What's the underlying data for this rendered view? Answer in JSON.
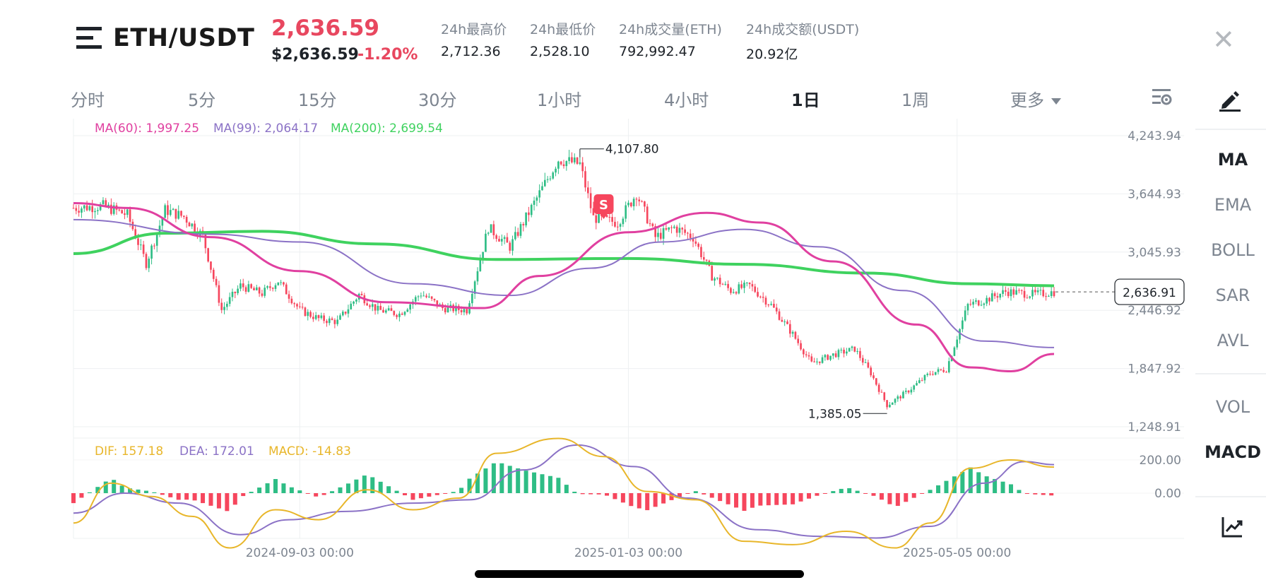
{
  "header": {
    "pair": "ETH/USDT",
    "last_price": "2,636.59",
    "last_price_usd": "$2,636.59",
    "change_pct": "-1.20%",
    "stats": [
      {
        "label": "24h最高价",
        "value": "2,712.36"
      },
      {
        "label": "24h最低价",
        "value": "2,528.10"
      },
      {
        "label": "24h成交量(ETH)",
        "value": "792,992.47"
      },
      {
        "label": "24h成交额(USDT)",
        "value": "20.92亿"
      }
    ],
    "close_label": "✕"
  },
  "tabs": [
    {
      "label": "分时",
      "active": false
    },
    {
      "label": "5分",
      "active": false
    },
    {
      "label": "15分",
      "active": false
    },
    {
      "label": "30分",
      "active": false
    },
    {
      "label": "1小时",
      "active": false
    },
    {
      "label": "4小时",
      "active": false
    },
    {
      "label": "1日",
      "active": true
    },
    {
      "label": "1周",
      "active": false
    },
    {
      "label": "更多",
      "active": false
    }
  ],
  "sidebar": {
    "indicators_main": [
      "MA",
      "EMA",
      "BOLL",
      "SAR",
      "AVL"
    ],
    "indicators_sub": [
      "VOL",
      "MACD"
    ],
    "active_main": "MA",
    "active_sub": "MACD",
    "icons": [
      "draw-icon",
      "settings-icon",
      "chart-trend-icon"
    ]
  },
  "colors": {
    "up": "#2ebd85",
    "down": "#f6465d",
    "ma60": "#e040a0",
    "ma99": "#8b72c6",
    "ma200": "#3fd25f",
    "dif": "#e8b62a",
    "dea": "#8b72c6",
    "accent_red": "#e8475f"
  },
  "chart_data": {
    "type": "candlestick",
    "interval": "1日",
    "price_axis_ticks": [
      "4,243.94",
      "3,644.93",
      "3,045.93",
      "2,446.92",
      "1,847.92",
      "1,248.91"
    ],
    "price_axis_range": [
      1248.91,
      4243.94
    ],
    "x_ticks": [
      "2024-09-03 00:00",
      "2025-01-03 00:00",
      "2025-05-05 00:00"
    ],
    "ma_legend": [
      {
        "label": "MA(60): 1,997.25",
        "color": "#e040a0"
      },
      {
        "label": "MA(99): 2,064.17",
        "color": "#8b72c6"
      },
      {
        "label": "MA(200): 2,699.54",
        "color": "#3fd25f"
      }
    ],
    "high_marker": "4,107.80",
    "low_marker": "1,385.05",
    "current_price_label": "2,636.91",
    "sell_marker": "S",
    "close_path": [
      [
        "2024-06-11",
        3500
      ],
      [
        "2024-06-22",
        3520
      ],
      [
        "2024-07-01",
        3430
      ],
      [
        "2024-07-08",
        2930
      ],
      [
        "2024-07-15",
        3480
      ],
      [
        "2024-07-22",
        3410
      ],
      [
        "2024-07-29",
        3210
      ],
      [
        "2024-08-05",
        2450
      ],
      [
        "2024-08-12",
        2700
      ],
      [
        "2024-08-20",
        2620
      ],
      [
        "2024-08-26",
        2750
      ],
      [
        "2024-09-03",
        2450
      ],
      [
        "2024-09-10",
        2360
      ],
      [
        "2024-09-17",
        2330
      ],
      [
        "2024-09-25",
        2610
      ],
      [
        "2024-10-02",
        2450
      ],
      [
        "2024-10-10",
        2410
      ],
      [
        "2024-10-18",
        2620
      ],
      [
        "2024-10-26",
        2470
      ],
      [
        "2024-11-04",
        2450
      ],
      [
        "2024-11-12",
        3300
      ],
      [
        "2024-11-20",
        3100
      ],
      [
        "2024-12-01",
        3650
      ],
      [
        "2024-12-08",
        4000
      ],
      [
        "2024-12-16",
        3950
      ],
      [
        "2024-12-21",
        3400
      ],
      [
        "2024-12-30",
        3350
      ],
      [
        "2025-01-06",
        3650
      ],
      [
        "2025-01-13",
        3200
      ],
      [
        "2025-01-20",
        3300
      ],
      [
        "2025-01-27",
        3200
      ],
      [
        "2025-02-03",
        2800
      ],
      [
        "2025-02-10",
        2650
      ],
      [
        "2025-02-17",
        2700
      ],
      [
        "2025-02-25",
        2500
      ],
      [
        "2025-03-05",
        2200
      ],
      [
        "2025-03-12",
        1900
      ],
      [
        "2025-03-20",
        1990
      ],
      [
        "2025-03-28",
        2050
      ],
      [
        "2025-04-03",
        1800
      ],
      [
        "2025-04-09",
        1470
      ],
      [
        "2025-04-16",
        1600
      ],
      [
        "2025-04-25",
        1800
      ],
      [
        "2025-05-01",
        1840
      ],
      [
        "2025-05-09",
        2500
      ],
      [
        "2025-05-16",
        2560
      ],
      [
        "2025-05-23",
        2640
      ],
      [
        "2025-06-03",
        2610
      ],
      [
        "2025-06-10",
        2636.91
      ]
    ],
    "ma60_path": [
      [
        "2024-06-11",
        3550
      ],
      [
        "2024-07-01",
        3500
      ],
      [
        "2024-08-01",
        3200
      ],
      [
        "2024-09-03",
        2850
      ],
      [
        "2024-10-05",
        2530
      ],
      [
        "2024-11-10",
        2470
      ],
      [
        "2024-12-01",
        2800
      ],
      [
        "2025-01-03",
        3250
      ],
      [
        "2025-02-01",
        3450
      ],
      [
        "2025-02-21",
        3350
      ],
      [
        "2025-03-20",
        2950
      ],
      [
        "2025-04-20",
        2300
      ],
      [
        "2025-05-10",
        1860
      ],
      [
        "2025-05-25",
        1820
      ],
      [
        "2025-06-10",
        1997.25
      ]
    ],
    "ma99_path": [
      [
        "2024-06-11",
        3380
      ],
      [
        "2024-08-01",
        3230
      ],
      [
        "2024-09-03",
        3150
      ],
      [
        "2024-10-15",
        2720
      ],
      [
        "2024-11-20",
        2600
      ],
      [
        "2024-12-20",
        2880
      ],
      [
        "2025-01-15",
        3150
      ],
      [
        "2025-02-15",
        3280
      ],
      [
        "2025-03-15",
        3100
      ],
      [
        "2025-04-15",
        2650
      ],
      [
        "2025-05-15",
        2130
      ],
      [
        "2025-06-10",
        2064.17
      ]
    ],
    "ma200_path": [
      [
        "2024-06-11",
        3030
      ],
      [
        "2024-07-15",
        3240
      ],
      [
        "2024-08-20",
        3260
      ],
      [
        "2024-10-01",
        3130
      ],
      [
        "2024-11-15",
        2970
      ],
      [
        "2025-01-03",
        2980
      ],
      [
        "2025-02-15",
        2920
      ],
      [
        "2025-04-01",
        2830
      ],
      [
        "2025-05-10",
        2720
      ],
      [
        "2025-06-10",
        2699.54
      ]
    ],
    "macd": {
      "axis_ticks": [
        "200.00",
        "0.00"
      ],
      "legend": [
        {
          "label": "DIF: 157.18",
          "color": "#e8b62a"
        },
        {
          "label": "DEA: 172.01",
          "color": "#8b72c6"
        },
        {
          "label": "MACD: -14.83",
          "color": "#e8b62a"
        }
      ],
      "dif_path": [
        [
          "2024-06-11",
          -180
        ],
        [
          "2024-06-25",
          60
        ],
        [
          "2024-07-10",
          -20
        ],
        [
          "2024-07-25",
          -140
        ],
        [
          "2024-08-08",
          -330
        ],
        [
          "2024-08-25",
          -100
        ],
        [
          "2024-09-10",
          -160
        ],
        [
          "2024-09-28",
          20
        ],
        [
          "2024-10-15",
          -100
        ],
        [
          "2024-11-01",
          -30
        ],
        [
          "2024-11-15",
          240
        ],
        [
          "2024-12-08",
          330
        ],
        [
          "2024-12-25",
          220
        ],
        [
          "2025-01-10",
          10
        ],
        [
          "2025-01-28",
          -40
        ],
        [
          "2025-02-15",
          -290
        ],
        [
          "2025-03-05",
          -310
        ],
        [
          "2025-03-25",
          -230
        ],
        [
          "2025-04-12",
          -330
        ],
        [
          "2025-04-25",
          -180
        ],
        [
          "2025-05-10",
          150
        ],
        [
          "2025-05-25",
          200
        ],
        [
          "2025-06-10",
          157.18
        ]
      ],
      "dea_path": [
        [
          "2024-06-11",
          -120
        ],
        [
          "2024-06-30",
          0
        ],
        [
          "2024-07-20",
          -60
        ],
        [
          "2024-08-12",
          -250
        ],
        [
          "2024-08-30",
          -160
        ],
        [
          "2024-09-20",
          -110
        ],
        [
          "2024-10-15",
          -60
        ],
        [
          "2024-11-05",
          -40
        ],
        [
          "2024-11-25",
          140
        ],
        [
          "2024-12-15",
          290
        ],
        [
          "2025-01-05",
          160
        ],
        [
          "2025-01-25",
          -30
        ],
        [
          "2025-02-20",
          -220
        ],
        [
          "2025-03-15",
          -260
        ],
        [
          "2025-04-05",
          -270
        ],
        [
          "2025-04-25",
          -200
        ],
        [
          "2025-05-15",
          60
        ],
        [
          "2025-05-30",
          190
        ],
        [
          "2025-06-10",
          172.01
        ]
      ]
    }
  }
}
